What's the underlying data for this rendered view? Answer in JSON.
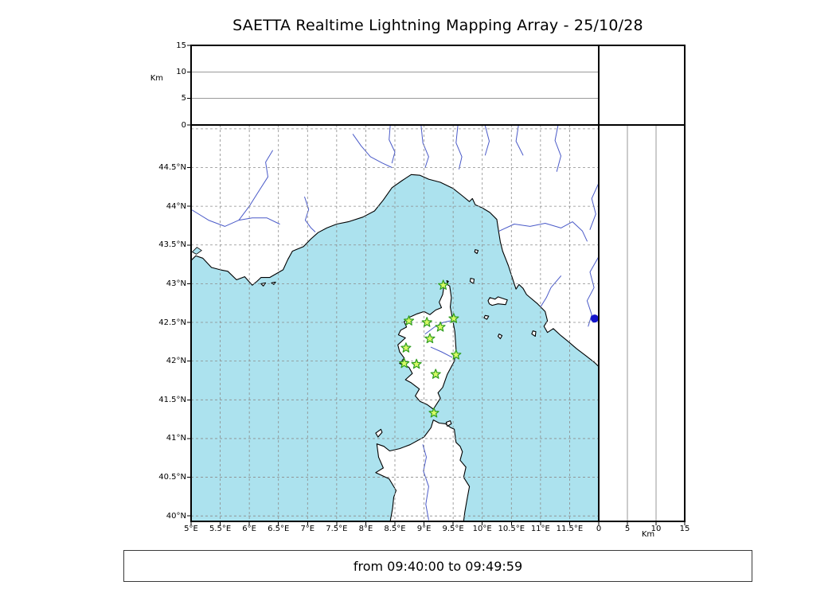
{
  "title": "SAETTA Realtime Lightning Mapping Array - 25/10/28",
  "status_text": "from 09:40:00 to 09:49:59",
  "axes": {
    "alt_unit": "Km",
    "lon_range": [
      5,
      12
    ],
    "lat_range": [
      39.93,
      45.05
    ],
    "alt_range": [
      0,
      15
    ],
    "lon_ticks": [
      {
        "v": 5,
        "label": "5°E"
      },
      {
        "v": 5.5,
        "label": "5.5°E"
      },
      {
        "v": 6,
        "label": "6°E"
      },
      {
        "v": 6.5,
        "label": "6.5°E"
      },
      {
        "v": 7,
        "label": "7°E"
      },
      {
        "v": 7.5,
        "label": "7.5°E"
      },
      {
        "v": 8,
        "label": "8°E"
      },
      {
        "v": 8.5,
        "label": "8.5°E"
      },
      {
        "v": 9,
        "label": "9°E"
      },
      {
        "v": 9.5,
        "label": "9.5°E"
      },
      {
        "v": 10,
        "label": "10°E"
      },
      {
        "v": 10.5,
        "label": "10.5°E"
      },
      {
        "v": 11,
        "label": "11°E"
      },
      {
        "v": 11.5,
        "label": "11.5°E"
      }
    ],
    "lat_ticks": [
      {
        "v": 40,
        "label": "40°N"
      },
      {
        "v": 40.5,
        "label": "40.5°N"
      },
      {
        "v": 41,
        "label": "41°N"
      },
      {
        "v": 41.5,
        "label": "41.5°N"
      },
      {
        "v": 42,
        "label": "42°N"
      },
      {
        "v": 42.5,
        "label": "42.5°N"
      },
      {
        "v": 43,
        "label": "43°N"
      },
      {
        "v": 43.5,
        "label": "43.5°N"
      },
      {
        "v": 44,
        "label": "44°N"
      },
      {
        "v": 44.5,
        "label": "44.5°N"
      }
    ],
    "alt_ticks": [
      {
        "v": 0,
        "label": "0"
      },
      {
        "v": 5,
        "label": "5"
      },
      {
        "v": 10,
        "label": "10"
      },
      {
        "v": 15,
        "label": "15"
      }
    ],
    "lon_grid": [
      5.5,
      6,
      6.5,
      7,
      7.5,
      8,
      8.5,
      9,
      9.5,
      10,
      10.5,
      11,
      11.5
    ],
    "lat_grid": [
      40,
      40.5,
      41,
      41.5,
      42,
      42.5,
      43,
      43.5,
      44,
      44.5,
      45
    ],
    "alt_grid": [
      5,
      10
    ]
  },
  "colors": {
    "sea": "#ace2ee",
    "land": "#ffffff",
    "coast": "#000000",
    "river": "#4a5ac8",
    "grid": "#8c8c8c",
    "panel_grid": "#9a9a9a",
    "frame": "#000000",
    "station_fill": "#d8f966",
    "station_stroke": "#2e9d1e",
    "flash_dot": "#1414cc"
  },
  "stations": [
    [
      9.33,
      42.98
    ],
    [
      8.74,
      42.52
    ],
    [
      9.05,
      42.5
    ],
    [
      9.28,
      42.44
    ],
    [
      9.51,
      42.55
    ],
    [
      9.1,
      42.29
    ],
    [
      8.69,
      42.17
    ],
    [
      9.55,
      42.08
    ],
    [
      8.66,
      41.97
    ],
    [
      8.87,
      41.96
    ],
    [
      9.2,
      41.83
    ],
    [
      9.17,
      41.33
    ]
  ],
  "flash_point": [
    11.93,
    42.55
  ],
  "geo": {
    "land": [
      [
        [
          5.0,
          43.3
        ],
        [
          5.08,
          43.36
        ],
        [
          5.2,
          43.33
        ],
        [
          5.35,
          43.21
        ],
        [
          5.5,
          43.18
        ],
        [
          5.63,
          43.16
        ],
        [
          5.78,
          43.05
        ],
        [
          5.92,
          43.09
        ],
        [
          6.05,
          42.98
        ],
        [
          6.13,
          43.03
        ],
        [
          6.2,
          43.08
        ],
        [
          6.35,
          43.08
        ],
        [
          6.58,
          43.18
        ],
        [
          6.66,
          43.31
        ],
        [
          6.74,
          43.42
        ],
        [
          6.93,
          43.48
        ],
        [
          7.06,
          43.58
        ],
        [
          7.18,
          43.66
        ],
        [
          7.33,
          43.72
        ],
        [
          7.5,
          43.77
        ],
        [
          7.7,
          43.8
        ],
        [
          7.95,
          43.86
        ],
        [
          8.15,
          43.94
        ],
        [
          8.3,
          44.08
        ],
        [
          8.45,
          44.24
        ],
        [
          8.62,
          44.33
        ],
        [
          8.78,
          44.41
        ],
        [
          8.93,
          44.4
        ],
        [
          9.08,
          44.35
        ],
        [
          9.28,
          44.31
        ],
        [
          9.5,
          44.23
        ],
        [
          9.65,
          44.14
        ],
        [
          9.78,
          44.06
        ],
        [
          9.83,
          44.1
        ],
        [
          9.88,
          44.02
        ],
        [
          10.0,
          43.98
        ],
        [
          10.13,
          43.92
        ],
        [
          10.25,
          43.83
        ],
        [
          10.28,
          43.68
        ],
        [
          10.31,
          43.54
        ],
        [
          10.35,
          43.42
        ],
        [
          10.45,
          43.23
        ],
        [
          10.54,
          43.02
        ],
        [
          10.58,
          42.93
        ],
        [
          10.63,
          42.99
        ],
        [
          10.7,
          42.94
        ],
        [
          10.76,
          42.86
        ],
        [
          10.95,
          42.74
        ],
        [
          11.08,
          42.64
        ],
        [
          11.12,
          42.52
        ],
        [
          11.06,
          42.45
        ],
        [
          11.12,
          42.37
        ],
        [
          11.22,
          42.42
        ],
        [
          11.35,
          42.33
        ],
        [
          11.48,
          42.25
        ],
        [
          11.62,
          42.16
        ],
        [
          11.78,
          42.07
        ],
        [
          11.93,
          41.98
        ],
        [
          12.0,
          41.93
        ],
        [
          12.0,
          45.05
        ],
        [
          5.0,
          45.05
        ]
      ],
      [
        [
          9.35,
          43.01
        ],
        [
          9.44,
          42.97
        ],
        [
          9.47,
          42.82
        ],
        [
          9.45,
          42.7
        ],
        [
          9.48,
          42.58
        ],
        [
          9.53,
          42.38
        ],
        [
          9.55,
          42.15
        ],
        [
          9.52,
          42.0
        ],
        [
          9.4,
          41.83
        ],
        [
          9.32,
          41.66
        ],
        [
          9.24,
          41.59
        ],
        [
          9.28,
          41.52
        ],
        [
          9.22,
          41.45
        ],
        [
          9.16,
          41.38
        ],
        [
          9.05,
          41.44
        ],
        [
          8.93,
          41.48
        ],
        [
          8.85,
          41.55
        ],
        [
          8.92,
          41.64
        ],
        [
          8.78,
          41.72
        ],
        [
          8.68,
          41.76
        ],
        [
          8.8,
          41.84
        ],
        [
          8.74,
          41.92
        ],
        [
          8.58,
          41.97
        ],
        [
          8.66,
          42.04
        ],
        [
          8.58,
          42.12
        ],
        [
          8.55,
          42.21
        ],
        [
          8.68,
          42.3
        ],
        [
          8.56,
          42.34
        ],
        [
          8.6,
          42.4
        ],
        [
          8.7,
          42.44
        ],
        [
          8.66,
          42.51
        ],
        [
          8.76,
          42.57
        ],
        [
          8.88,
          42.61
        ],
        [
          9.0,
          42.64
        ],
        [
          9.1,
          42.6
        ],
        [
          9.2,
          42.66
        ],
        [
          9.3,
          42.69
        ],
        [
          9.26,
          42.76
        ],
        [
          9.32,
          42.86
        ]
      ],
      [
        [
          8.42,
          39.93
        ],
        [
          8.46,
          40.1
        ],
        [
          8.48,
          40.24
        ],
        [
          8.52,
          40.33
        ],
        [
          8.4,
          40.48
        ],
        [
          8.17,
          40.56
        ],
        [
          8.3,
          40.62
        ],
        [
          8.22,
          40.76
        ],
        [
          8.19,
          40.93
        ],
        [
          8.31,
          40.9
        ],
        [
          8.41,
          40.84
        ],
        [
          8.58,
          40.87
        ],
        [
          8.76,
          40.92
        ],
        [
          9.0,
          41.02
        ],
        [
          9.12,
          41.14
        ],
        [
          9.16,
          41.24
        ],
        [
          9.26,
          41.2
        ],
        [
          9.37,
          41.19
        ],
        [
          9.46,
          41.14
        ],
        [
          9.52,
          41.12
        ],
        [
          9.55,
          40.95
        ],
        [
          9.62,
          40.9
        ],
        [
          9.66,
          40.83
        ],
        [
          9.62,
          40.72
        ],
        [
          9.72,
          40.63
        ],
        [
          9.68,
          40.5
        ],
        [
          9.78,
          40.38
        ],
        [
          9.74,
          40.22
        ],
        [
          9.7,
          40.05
        ],
        [
          9.68,
          39.93
        ]
      ],
      [
        [
          10.1,
          42.78
        ],
        [
          10.13,
          42.82
        ],
        [
          10.22,
          42.8
        ],
        [
          10.27,
          42.83
        ],
        [
          10.35,
          42.81
        ],
        [
          10.43,
          42.79
        ],
        [
          10.4,
          42.73
        ],
        [
          10.27,
          42.74
        ],
        [
          10.17,
          42.72
        ],
        [
          10.12,
          42.74
        ]
      ],
      [
        [
          9.8,
          43.07
        ],
        [
          9.86,
          43.06
        ],
        [
          9.85,
          43.0
        ],
        [
          9.79,
          43.03
        ]
      ],
      [
        [
          9.88,
          43.44
        ],
        [
          9.93,
          43.43
        ],
        [
          9.91,
          43.39
        ],
        [
          9.87,
          43.41
        ]
      ],
      [
        [
          10.05,
          42.59
        ],
        [
          10.11,
          42.58
        ],
        [
          10.08,
          42.54
        ],
        [
          10.03,
          42.56
        ]
      ],
      [
        [
          10.29,
          42.35
        ],
        [
          10.34,
          42.33
        ],
        [
          10.31,
          42.29
        ],
        [
          10.27,
          42.32
        ]
      ],
      [
        [
          10.87,
          42.39
        ],
        [
          10.92,
          42.38
        ],
        [
          10.91,
          42.32
        ],
        [
          10.85,
          42.35
        ]
      ],
      [
        [
          8.21,
          41.02
        ],
        [
          8.28,
          41.08
        ],
        [
          8.26,
          41.12
        ],
        [
          8.17,
          41.07
        ]
      ],
      [
        [
          9.38,
          41.21
        ],
        [
          9.45,
          41.23
        ],
        [
          9.47,
          41.19
        ],
        [
          9.4,
          41.16
        ]
      ],
      [
        [
          9.39,
          43.04
        ],
        [
          9.42,
          43.03
        ],
        [
          9.4,
          43.01
        ]
      ],
      [
        [
          6.2,
          43.0
        ],
        [
          6.28,
          43.01
        ],
        [
          6.24,
          42.97
        ]
      ],
      [
        [
          6.38,
          43.01
        ],
        [
          6.45,
          43.02
        ],
        [
          6.42,
          42.99
        ]
      ]
    ],
    "lakes": [
      [
        [
          5.02,
          43.41
        ],
        [
          5.1,
          43.47
        ],
        [
          5.18,
          43.43
        ],
        [
          5.09,
          43.38
        ]
      ]
    ],
    "rivers": [
      [
        [
          5.02,
          43.95
        ],
        [
          5.3,
          43.82
        ],
        [
          5.58,
          43.74
        ],
        [
          5.82,
          43.82
        ],
        [
          6.0,
          44.0
        ],
        [
          6.15,
          44.18
        ],
        [
          6.32,
          44.38
        ],
        [
          6.28,
          44.57
        ],
        [
          6.4,
          44.72
        ]
      ],
      [
        [
          5.82,
          43.82
        ],
        [
          6.05,
          43.85
        ],
        [
          6.3,
          43.85
        ],
        [
          6.52,
          43.77
        ]
      ],
      [
        [
          6.95,
          44.12
        ],
        [
          7.02,
          43.96
        ],
        [
          6.96,
          43.82
        ],
        [
          7.06,
          43.72
        ],
        [
          7.13,
          43.67
        ]
      ],
      [
        [
          7.78,
          44.93
        ],
        [
          7.92,
          44.78
        ],
        [
          8.08,
          44.64
        ],
        [
          8.28,
          44.56
        ],
        [
          8.45,
          44.5
        ]
      ],
      [
        [
          8.42,
          45.04
        ],
        [
          8.4,
          44.86
        ],
        [
          8.5,
          44.7
        ],
        [
          8.45,
          44.56
        ]
      ],
      [
        [
          8.95,
          45.04
        ],
        [
          8.98,
          44.82
        ],
        [
          9.08,
          44.64
        ],
        [
          9.02,
          44.5
        ]
      ],
      [
        [
          9.58,
          45.04
        ],
        [
          9.55,
          44.82
        ],
        [
          9.65,
          44.64
        ],
        [
          9.6,
          44.48
        ]
      ],
      [
        [
          10.05,
          45.04
        ],
        [
          10.12,
          44.84
        ],
        [
          10.05,
          44.66
        ]
      ],
      [
        [
          10.62,
          45.04
        ],
        [
          10.58,
          44.84
        ],
        [
          10.7,
          44.66
        ]
      ],
      [
        [
          10.29,
          43.68
        ],
        [
          10.55,
          43.77
        ],
        [
          10.82,
          43.74
        ],
        [
          11.08,
          43.78
        ],
        [
          11.35,
          43.72
        ],
        [
          11.55,
          43.8
        ],
        [
          11.72,
          43.68
        ],
        [
          11.8,
          43.55
        ]
      ],
      [
        [
          12.0,
          44.3
        ],
        [
          11.88,
          44.1
        ],
        [
          11.95,
          43.9
        ],
        [
          11.85,
          43.7
        ]
      ],
      [
        [
          11.35,
          43.1
        ],
        [
          11.18,
          42.95
        ],
        [
          11.1,
          42.82
        ],
        [
          11.0,
          42.7
        ]
      ],
      [
        [
          12.0,
          43.35
        ],
        [
          11.85,
          43.15
        ],
        [
          11.92,
          42.95
        ],
        [
          11.8,
          42.78
        ],
        [
          11.88,
          42.6
        ],
        [
          11.82,
          42.45
        ]
      ],
      [
        [
          8.98,
          40.92
        ],
        [
          9.04,
          40.76
        ],
        [
          8.99,
          40.58
        ],
        [
          9.08,
          40.38
        ],
        [
          9.03,
          40.15
        ],
        [
          9.08,
          39.95
        ]
      ],
      [
        [
          9.02,
          42.35
        ],
        [
          9.18,
          42.44
        ],
        [
          9.33,
          42.5
        ],
        [
          9.45,
          42.52
        ]
      ],
      [
        [
          9.12,
          42.18
        ],
        [
          9.3,
          42.12
        ],
        [
          9.48,
          42.05
        ]
      ],
      [
        [
          11.3,
          45.04
        ],
        [
          11.25,
          44.85
        ],
        [
          11.35,
          44.65
        ],
        [
          11.28,
          44.45
        ]
      ]
    ]
  }
}
